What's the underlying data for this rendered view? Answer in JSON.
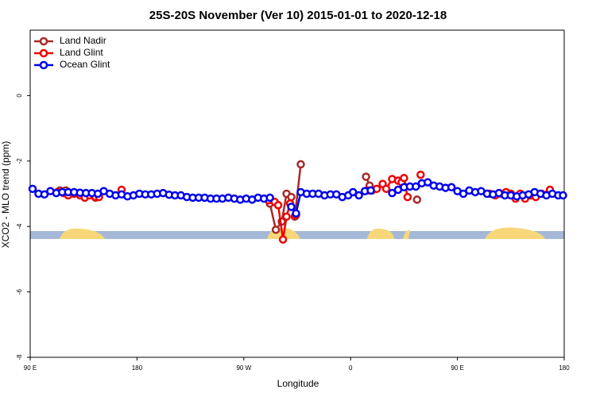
{
  "chart_data": {
    "type": "line",
    "title": "25S-20S November (Ver 10)   2015-01-01 to 2020-12-18",
    "xlabel": "Longitude",
    "ylabel": "XCO2 - MLO trend (ppm)",
    "xlim": [
      90,
      540
    ],
    "ylim": [
      -8,
      2
    ],
    "xticks": [
      {
        "value": 90,
        "label": "90 E"
      },
      180,
      {
        "value": 270,
        "label": "90 W"
      },
      {
        "value": 360,
        "label": "0"
      },
      {
        "value": 450,
        "label": "90 E"
      },
      {
        "value": 540,
        "label": "180"
      }
    ],
    "yticks": [
      0,
      -2,
      -4,
      -6,
      -8
    ],
    "legend": "upper left",
    "series": [
      {
        "name": "Land Nadir",
        "color": "#a52a2a",
        "x": [
          115,
          120,
          130,
          145,
          200,
          292,
          297,
          302,
          306,
          310,
          313,
          318,
          340,
          373,
          376,
          390,
          405,
          410,
          416
        ],
        "values": [
          -2.9,
          -2.9,
          null,
          -3.12,
          null,
          -3.3,
          -4.1,
          -3.85,
          -3.0,
          -3.1,
          -3.7,
          -2.1,
          null,
          -2.48,
          -2.75,
          null,
          -2.78,
          null,
          -3.18
        ]
      },
      {
        "name": "Land Glint",
        "color": "#ee0000",
        "x": [
          113,
          118,
          122,
          127,
          132,
          136,
          140,
          145,
          148,
          155,
          167,
          250,
          291,
          296,
          299,
          303,
          306,
          309,
          314,
          340,
          374,
          378,
          382,
          387,
          390,
          395,
          400,
          403,
          405,
          408,
          413,
          419,
          450,
          477,
          482,
          487,
          491,
          495,
          499,
          503,
          507,
          512,
          516,
          521,
          528
        ],
        "values": [
          -2.95,
          -2.98,
          -3.05,
          -3.0,
          -3.05,
          -3.12,
          -3.05,
          -3.1,
          -3.1,
          null,
          -2.88,
          null,
          -3.2,
          -3.25,
          -3.35,
          -4.4,
          -3.7,
          -3.3,
          -3.65,
          null,
          -2.9,
          -2.9,
          -2.85,
          -2.7,
          -2.85,
          -2.55,
          -2.6,
          -2.65,
          -2.52,
          -3.1,
          null,
          -2.42,
          null,
          -3.0,
          -3.05,
          -3.0,
          -2.95,
          -3.0,
          -3.15,
          -3.0,
          -3.15,
          -3.05,
          -3.1,
          -3.0,
          -2.88
        ]
      },
      {
        "name": "Ocean Glint",
        "color": "#0000ee",
        "x": [
          92,
          97,
          102,
          107,
          112,
          117,
          122,
          127,
          132,
          137,
          142,
          147,
          152,
          157,
          162,
          167,
          172,
          177,
          182,
          187,
          192,
          197,
          202,
          207,
          212,
          217,
          222,
          227,
          232,
          237,
          242,
          247,
          252,
          257,
          262,
          267,
          272,
          277,
          282,
          287,
          292,
          300,
          310,
          314,
          318,
          323,
          328,
          333,
          338,
          343,
          348,
          353,
          358,
          362,
          367,
          372,
          377,
          385,
          395,
          400,
          405,
          410,
          415,
          420,
          425,
          430,
          435,
          440,
          445,
          450,
          455,
          460,
          465,
          470,
          475,
          480,
          485,
          490,
          495,
          500,
          505,
          510,
          515,
          520,
          525,
          530,
          535,
          539
        ],
        "values": [
          -2.85,
          -3.0,
          -3.02,
          -2.92,
          -2.98,
          -2.95,
          -2.95,
          -2.95,
          -2.97,
          -2.98,
          -2.98,
          -3.0,
          -2.92,
          -3.0,
          -3.05,
          -3.02,
          -3.08,
          -3.05,
          -3.0,
          -3.02,
          -3.02,
          -3.0,
          -2.98,
          -3.03,
          -3.05,
          -3.05,
          -3.1,
          -3.12,
          -3.12,
          -3.12,
          -3.15,
          -3.15,
          -3.15,
          -3.12,
          -3.15,
          -3.18,
          -3.15,
          -3.18,
          -3.12,
          -3.15,
          -3.12,
          null,
          -3.4,
          -3.6,
          -2.95,
          -3.0,
          -3.0,
          -3.0,
          -3.05,
          -3.02,
          -3.02,
          -3.1,
          -3.05,
          -2.95,
          -3.05,
          -2.92,
          -2.9,
          null,
          -2.98,
          -2.88,
          -2.8,
          -2.78,
          -2.78,
          -2.68,
          -2.65,
          -2.75,
          -2.78,
          -2.82,
          -2.8,
          -2.92,
          -3.0,
          -2.9,
          -2.95,
          -2.92,
          -3.0,
          -3.02,
          -2.98,
          -3.05,
          -3.05,
          -3.08,
          -3.05,
          -3.02,
          -2.95,
          -3.0,
          -3.05,
          -3.0,
          -3.05,
          -3.05
        ]
      }
    ]
  }
}
